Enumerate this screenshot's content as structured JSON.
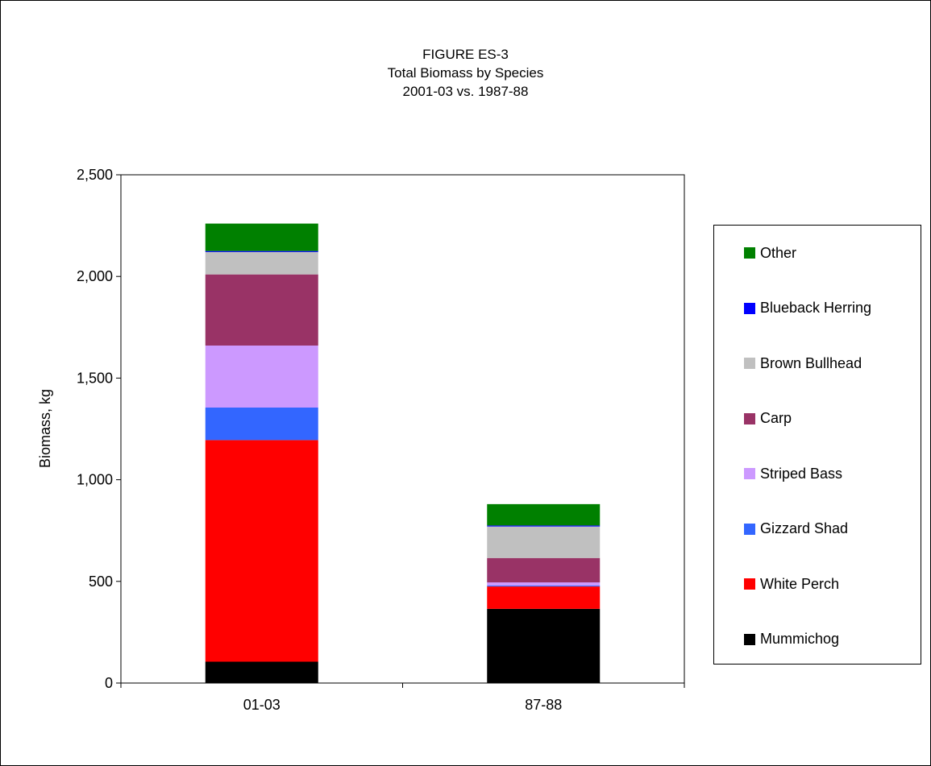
{
  "chart_data": {
    "type": "bar",
    "stacked": true,
    "title_lines": [
      "FIGURE ES-3",
      "Total Biomass by Species",
      "2001-03 vs. 1987-88"
    ],
    "ylabel": "Biomass, kg",
    "xlabel": "",
    "ylim": [
      0,
      2500
    ],
    "yticks": [
      0,
      500,
      1000,
      1500,
      2000,
      2500
    ],
    "ytick_labels": [
      "0",
      "500",
      "1,000",
      "1,500",
      "2,000",
      "2,500"
    ],
    "categories": [
      "01-03",
      "87-88"
    ],
    "legend_position": "right",
    "grid": false,
    "series": [
      {
        "name": "Mummichog",
        "color": "#000000",
        "values": [
          105,
          365
        ]
      },
      {
        "name": "White Perch",
        "color": "#ff0000",
        "values": [
          1090,
          110
        ]
      },
      {
        "name": "Gizzard Shad",
        "color": "#3366ff",
        "values": [
          160,
          5
        ]
      },
      {
        "name": "Striped Bass",
        "color": "#cc99ff",
        "values": [
          305,
          15
        ]
      },
      {
        "name": "Carp",
        "color": "#993366",
        "values": [
          350,
          120
        ]
      },
      {
        "name": "Brown Bullhead",
        "color": "#c0c0c0",
        "values": [
          110,
          155
        ]
      },
      {
        "name": "Blueback Herring",
        "color": "#0000ff",
        "values": [
          5,
          5
        ]
      },
      {
        "name": "Other",
        "color": "#008000",
        "values": [
          135,
          105
        ]
      }
    ]
  }
}
